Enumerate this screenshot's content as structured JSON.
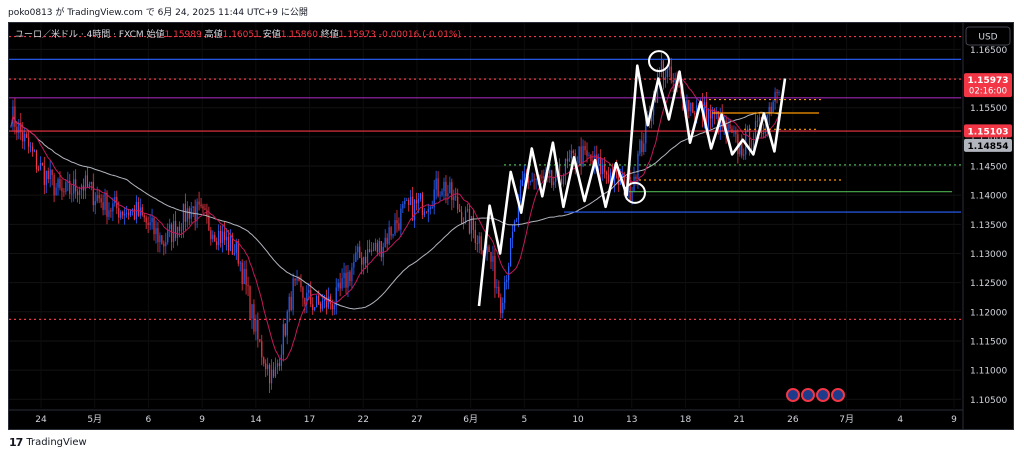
{
  "caption": "poko0813 が TradingView.com で 6月 24, 2025 11:44 UTC+9 に公開",
  "footer": {
    "brand": "TradingView",
    "logo_icon": "tradingview-logo-icon"
  },
  "chart_data": {
    "type": "candlestick",
    "symbol_label": "ユーロ／米ドル · 4時間 · FXCM",
    "ohlc_labels": {
      "open_label": "始値",
      "open": "1.15989",
      "high_label": "高値",
      "high": "1.16051",
      "low_label": "安値",
      "low": "1.15860",
      "close_label": "終値",
      "close": "1.15973",
      "change": "-0.00016 (-0.01%)"
    },
    "currency": "USD",
    "y_ticks": [
      "1.16500",
      "1.16000",
      "1.15500",
      "1.15000",
      "1.14500",
      "1.14000",
      "1.13500",
      "1.13000",
      "1.12500",
      "1.12000",
      "1.11500",
      "1.11000",
      "1.10500"
    ],
    "ylim": [
      1.1035,
      1.1685
    ],
    "x_ticks": [
      "24",
      "5月",
      "6",
      "9",
      "14",
      "17",
      "22",
      "27",
      "6月",
      "5",
      "10",
      "13",
      "18",
      "21",
      "26",
      "7月",
      "4",
      "9"
    ],
    "price_badges": [
      {
        "value": "1.15973",
        "sub": "02:16:00",
        "color": "#f23645"
      },
      {
        "value": "1.15103",
        "color": "#f23645"
      },
      {
        "value": "1.14854",
        "color": "#b2b5be"
      }
    ],
    "horizontal_lines": [
      {
        "y": 1.1633,
        "color": "#2962ff",
        "style": "solid"
      },
      {
        "y": 1.1599,
        "color": "#f23645",
        "style": "dotted"
      },
      {
        "y": 1.1567,
        "color": "#9c27b0",
        "style": "solid"
      },
      {
        "y": 1.151,
        "color": "#f23645",
        "style": "solid"
      },
      {
        "y": 1.1187,
        "color": "#f23645",
        "style": "dotted"
      },
      {
        "y": 1.1672,
        "color": "#f23645",
        "style": "dotted"
      }
    ],
    "segment_lines": [
      {
        "y": 1.1371,
        "color": "#2962ff",
        "style": "solid"
      },
      {
        "y": 1.1406,
        "color": "#4caf50",
        "style": "solid"
      },
      {
        "y": 1.1452,
        "color": "#4caf50",
        "style": "dotted"
      },
      {
        "y": 1.1426,
        "color": "#ff9800",
        "style": "dotted"
      },
      {
        "y": 1.1564,
        "color": "#ff9800",
        "style": "dotted"
      },
      {
        "y": 1.1541,
        "color": "#ff9800",
        "style": "solid"
      },
      {
        "y": 1.1513,
        "color": "#ff9800",
        "style": "dotted"
      }
    ],
    "wave_path": [
      1.121,
      1.1382,
      1.13,
      1.144,
      1.137,
      1.148,
      1.1398,
      1.149,
      1.138,
      1.1465,
      1.139,
      1.146,
      1.138,
      1.1455,
      1.14,
      1.1622,
      1.152,
      1.16,
      1.153,
      1.1612,
      1.149,
      1.156,
      1.148,
      1.1538,
      1.147,
      1.1495,
      1.147,
      1.154,
      1.1475,
      1.16
    ],
    "circles": [
      1.163,
      1.1404
    ],
    "close": 1.15973,
    "event_icons": [
      "eu-flag-icon",
      "us-flag-icon",
      "eu-flag-icon",
      "eu-flag-icon"
    ]
  }
}
